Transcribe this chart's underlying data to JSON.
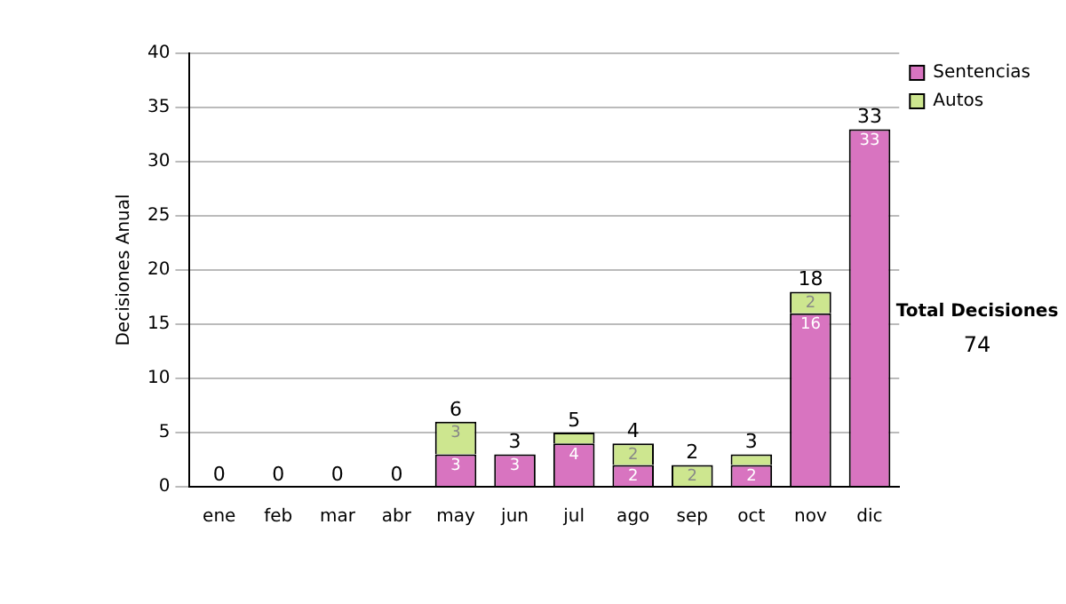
{
  "chart_data": {
    "type": "bar",
    "stacked": true,
    "ylabel": "Decisiones Anual",
    "categories": [
      "ene",
      "feb",
      "mar",
      "abr",
      "may",
      "jun",
      "jul",
      "ago",
      "sep",
      "oct",
      "nov",
      "dic"
    ],
    "series": [
      {
        "name": "Sentencias",
        "color": "#d874c0",
        "values": [
          0,
          0,
          0,
          0,
          3,
          3,
          4,
          2,
          0,
          2,
          16,
          33
        ],
        "value_labels": [
          null,
          null,
          null,
          null,
          "3",
          "3",
          "4",
          "2",
          null,
          "2",
          "16",
          "33"
        ]
      },
      {
        "name": "Autos",
        "color": "#cde68f",
        "values": [
          0,
          0,
          0,
          0,
          3,
          0,
          1,
          2,
          2,
          1,
          2,
          0
        ],
        "value_labels": [
          null,
          null,
          null,
          null,
          "3",
          null,
          null,
          "2",
          "2",
          null,
          "2",
          null
        ]
      }
    ],
    "totals": [
      "0",
      "0",
      "0",
      "0",
      "6",
      "3",
      "5",
      "4",
      "2",
      "3",
      "18",
      "33"
    ],
    "ylim": [
      0,
      40
    ],
    "yticks": [
      0,
      5,
      10,
      15,
      20,
      25,
      30,
      35,
      40
    ],
    "grid": "y",
    "legend": "right",
    "annotations": [
      "Total Decisiones",
      "74"
    ]
  }
}
